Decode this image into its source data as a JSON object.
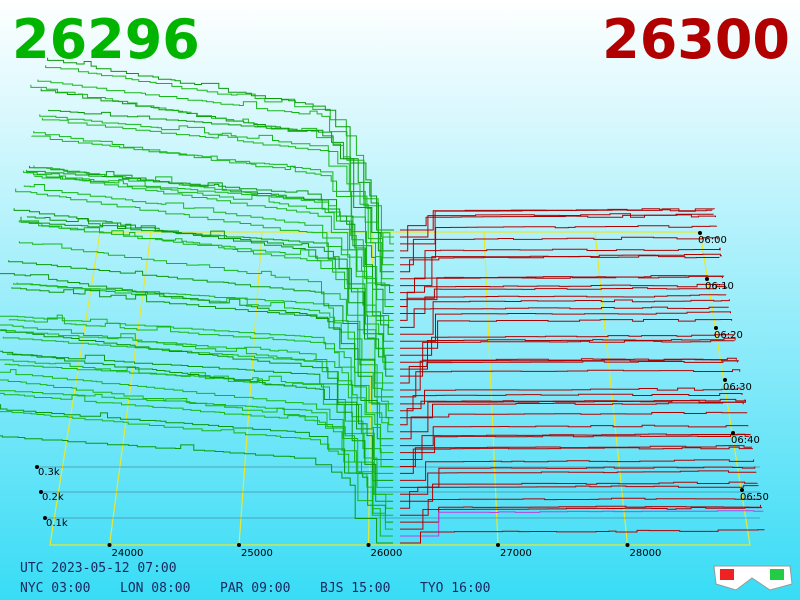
{
  "header": {
    "bid": "26296",
    "ask": "26300"
  },
  "axis": {
    "price_ticks": [
      "24000",
      "25000",
      "26000",
      "27000",
      "28000"
    ],
    "time_ticks": [
      "06:00",
      "06:10",
      "06:20",
      "06:30",
      "06:40",
      "06:50"
    ],
    "depth_ticks": [
      "0.3k",
      "0.2k",
      "0.1k"
    ]
  },
  "footer": {
    "utc": "UTC 2023-05-12 07:00",
    "zones": [
      "NYC 03:00",
      "LON 08:00",
      "PAR 09:00",
      "BJS 15:00",
      "TYO 16:00"
    ]
  }
}
